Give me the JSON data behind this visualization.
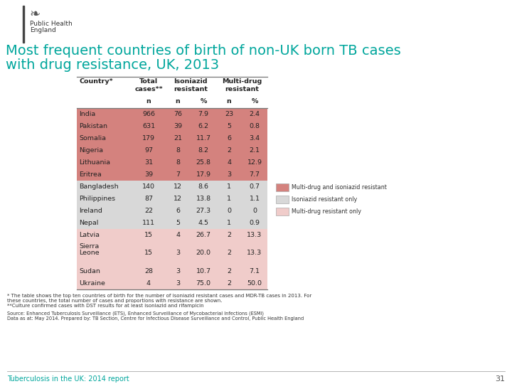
{
  "title_line1": "Most frequent countries of birth of non-UK born TB cases",
  "title_line2": "with drug resistance, UK, 2013",
  "title_color": "#00A69C",
  "bg_color": "#ffffff",
  "rows": [
    {
      "country": "India",
      "total": "966",
      "iso_n": "76",
      "iso_pct": "7.9",
      "mdr_n": "23",
      "mdr_pct": "2.4",
      "color": "mdi"
    },
    {
      "country": "Pakistan",
      "total": "631",
      "iso_n": "39",
      "iso_pct": "6.2",
      "mdr_n": "5",
      "mdr_pct": "0.8",
      "color": "mdi"
    },
    {
      "country": "Somalia",
      "total": "179",
      "iso_n": "21",
      "iso_pct": "11.7",
      "mdr_n": "6",
      "mdr_pct": "3.4",
      "color": "mdi"
    },
    {
      "country": "Nigeria",
      "total": "97",
      "iso_n": "8",
      "iso_pct": "8.2",
      "mdr_n": "2",
      "mdr_pct": "2.1",
      "color": "mdi"
    },
    {
      "country": "Lithuania",
      "total": "31",
      "iso_n": "8",
      "iso_pct": "25.8",
      "mdr_n": "4",
      "mdr_pct": "12.9",
      "color": "mdi"
    },
    {
      "country": "Eritrea",
      "total": "39",
      "iso_n": "7",
      "iso_pct": "17.9",
      "mdr_n": "3",
      "mdr_pct": "7.7",
      "color": "mdi"
    },
    {
      "country": "Bangladesh",
      "total": "140",
      "iso_n": "12",
      "iso_pct": "8.6",
      "mdr_n": "1",
      "mdr_pct": "0.7",
      "color": "iso"
    },
    {
      "country": "Philippines",
      "total": "87",
      "iso_n": "12",
      "iso_pct": "13.8",
      "mdr_n": "1",
      "mdr_pct": "1.1",
      "color": "iso"
    },
    {
      "country": "Ireland",
      "total": "22",
      "iso_n": "6",
      "iso_pct": "27.3",
      "mdr_n": "0",
      "mdr_pct": "0",
      "color": "iso"
    },
    {
      "country": "Nepal",
      "total": "111",
      "iso_n": "5",
      "iso_pct": "4.5",
      "mdr_n": "1",
      "mdr_pct": "0.9",
      "color": "iso"
    },
    {
      "country": "Latvia",
      "total": "15",
      "iso_n": "4",
      "iso_pct": "26.7",
      "mdr_n": "2",
      "mdr_pct": "13.3",
      "color": "mdr"
    },
    {
      "country": "Sierra\nLeone",
      "total": "15",
      "iso_n": "3",
      "iso_pct": "20.0",
      "mdr_n": "2",
      "mdr_pct": "13.3",
      "color": "mdr"
    },
    {
      "country": "Sudan",
      "total": "28",
      "iso_n": "3",
      "iso_pct": "10.7",
      "mdr_n": "2",
      "mdr_pct": "7.1",
      "color": "mdr"
    },
    {
      "country": "Ukraine",
      "total": "4",
      "iso_n": "3",
      "iso_pct": "75.0",
      "mdr_n": "2",
      "mdr_pct": "50.0",
      "color": "mdr"
    }
  ],
  "row_colors": {
    "mdi": "#d4827e",
    "iso": "#d8d8d8",
    "mdr": "#f0ccca"
  },
  "legend_items": [
    {
      "label": "Multi-drug and isoniazid resistant",
      "color": "#d4827e"
    },
    {
      "label": "Isoniazid resistant only",
      "color": "#d8d8d8"
    },
    {
      "label": "Multi-drug resistant only",
      "color": "#f0ccca"
    }
  ],
  "footnote1": "* The table shows the top ten countries of birth for the number of isoniazid resistant cases and MDR-TB cases in 2013. For",
  "footnote2": "these countries, the total number of cases and proportions with resistance are shown.",
  "footnote3": "**Culture confirmed cases with DST results for at least isoniazid and rifampicin",
  "source1": "Source: Enhanced Tuberculosis Surveillance (ETS), Enhanced Surveillance of Mycobacterial Infections (ESMI)",
  "source2": "Data as at: May 2014. Prepared by: TB Section, Centre for Infectious Disease Surveillance and Control, Public Health England",
  "footer": "Tuberculosis in the UK: 2014 report",
  "page_num": "31"
}
